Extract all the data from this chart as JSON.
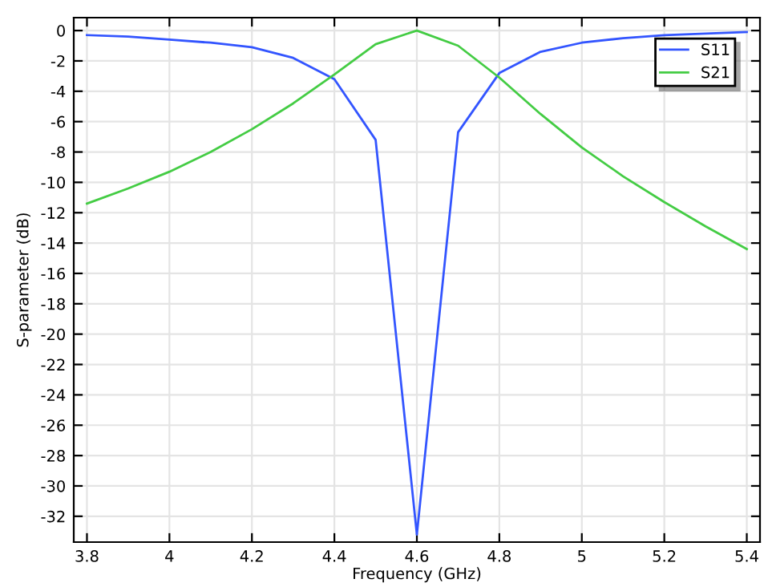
{
  "chart_data": {
    "type": "line",
    "xlabel": "Frequency (GHz)",
    "ylabel": "S-parameter (dB)",
    "x": [
      3.8,
      3.9,
      4.0,
      4.1,
      4.2,
      4.3,
      4.4,
      4.5,
      4.6,
      4.7,
      4.8,
      4.9,
      5.0,
      5.1,
      5.2,
      5.3,
      5.4
    ],
    "series": [
      {
        "name": "S11",
        "color": "#3355ff",
        "values": [
          -0.3,
          -0.4,
          -0.6,
          -0.8,
          -1.1,
          -1.8,
          -3.2,
          -7.2,
          -33.2,
          -6.7,
          -2.8,
          -1.4,
          -0.8,
          -0.5,
          -0.3,
          -0.2,
          -0.1
        ]
      },
      {
        "name": "S21",
        "color": "#44cc44",
        "values": [
          -11.4,
          -10.4,
          -9.3,
          -8.0,
          -6.5,
          -4.8,
          -2.9,
          -0.9,
          0,
          -1.0,
          -3.1,
          -5.5,
          -7.7,
          -9.6,
          -11.3,
          -12.9,
          -14.4
        ]
      }
    ],
    "xlim": [
      3.768,
      5.432
    ],
    "ylim": [
      -33.7,
      0.85
    ],
    "xticks": [
      3.8,
      4,
      4.2,
      4.4,
      4.6,
      4.8,
      5,
      5.2,
      5.4
    ],
    "yticks": [
      0,
      -2,
      -4,
      -6,
      -8,
      -10,
      -12,
      -14,
      -16,
      -18,
      -20,
      -22,
      -24,
      -26,
      -28,
      -30,
      -32
    ],
    "grid": true,
    "legend": "top right",
    "marker": "none",
    "line_style": "solid"
  }
}
